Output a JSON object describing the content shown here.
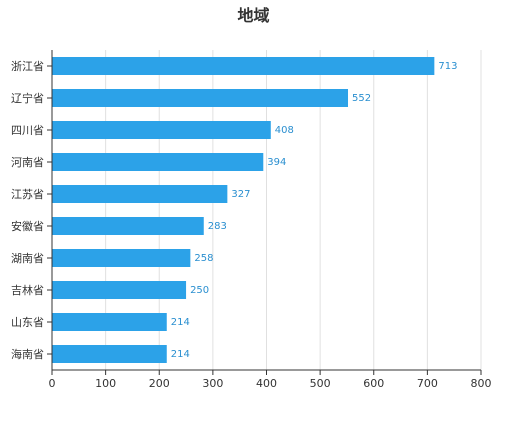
{
  "chart_data": {
    "type": "bar",
    "orientation": "horizontal",
    "title": "地域",
    "categories": [
      "浙江省",
      "辽宁省",
      "四川省",
      "河南省",
      "江苏省",
      "安徽省",
      "湖南省",
      "吉林省",
      "山东省",
      "海南省"
    ],
    "values": [
      713,
      552,
      408,
      394,
      327,
      283,
      258,
      250,
      214,
      214
    ],
    "xlim": [
      0,
      800
    ],
    "xticks": [
      0,
      100,
      200,
      300,
      400,
      500,
      600,
      700,
      800
    ],
    "grid": "vertical",
    "bar_color": "#2ca2e8",
    "label_color": "#2a8fd0"
  }
}
